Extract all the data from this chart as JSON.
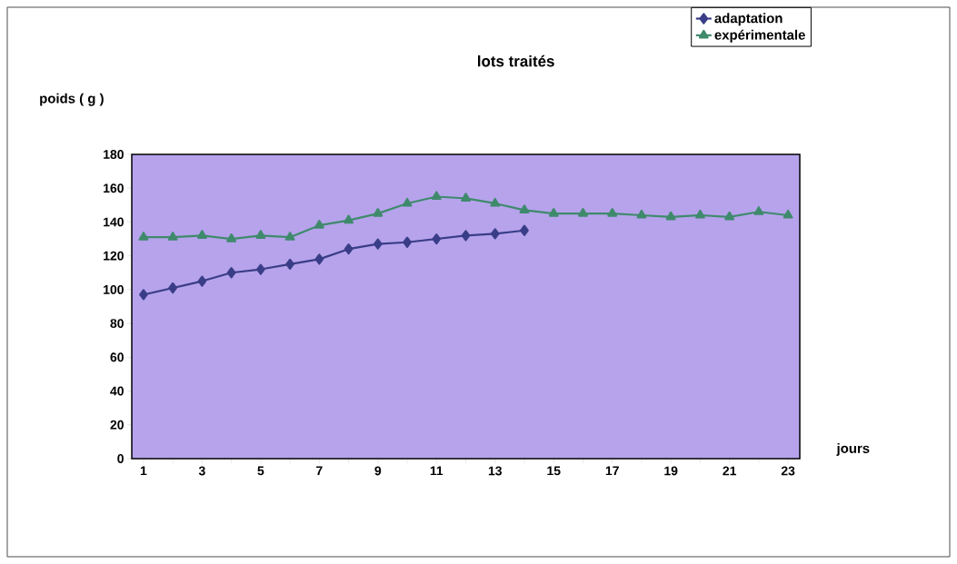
{
  "chart_data": {
    "type": "line",
    "title": "lots traités",
    "ylabel": "poids ( g )",
    "xlabel": "jours",
    "categories": [
      "1",
      null,
      "3",
      null,
      "5",
      null,
      "7",
      null,
      "9",
      null,
      "11",
      null,
      "13",
      null,
      "15",
      null,
      "17",
      null,
      "19",
      null,
      "21",
      null,
      "23"
    ],
    "series": [
      {
        "name": "adaptation",
        "color": "#3a3d87",
        "marker": "diamond",
        "values": [
          97,
          101,
          105,
          110,
          112,
          115,
          118,
          124,
          127,
          128,
          130,
          132,
          133,
          135,
          null,
          null,
          null,
          null,
          null,
          null,
          null,
          null,
          null
        ]
      },
      {
        "name": "expérimentale",
        "color": "#3f8a6c",
        "marker": "triangle",
        "values": [
          131,
          131,
          132,
          130,
          132,
          131,
          138,
          141,
          145,
          151,
          155,
          154,
          151,
          147,
          145,
          145,
          145,
          144,
          143,
          144,
          143,
          146,
          144
        ]
      }
    ],
    "ylim": [
      0,
      180
    ],
    "yticks": [
      0,
      20,
      40,
      60,
      80,
      100,
      120,
      140,
      160,
      180
    ],
    "grid": false,
    "legend": "top right"
  }
}
